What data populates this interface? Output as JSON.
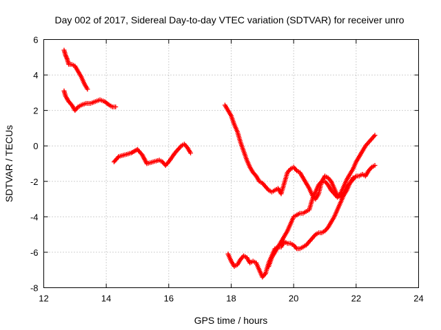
{
  "chart_data": {
    "type": "scatter",
    "title": "Day 002 of 2017, Sidereal Day-to-day VTEC variation (SDTVAR) for receiver unro",
    "xlabel": "GPS time / hours",
    "ylabel": "SDTVAR / TECUs",
    "xlim": [
      12,
      24
    ],
    "ylim": [
      -8,
      6
    ],
    "xticks": [
      "12",
      "14",
      "16",
      "18",
      "20",
      "22",
      "24"
    ],
    "yticks": [
      "-8",
      "-6",
      "-4",
      "-2",
      "0",
      "2",
      "4",
      "6"
    ],
    "grid": true,
    "marker": "plus",
    "color": "#ff0000",
    "series": [
      {
        "x": [
          12.65,
          12.7,
          12.75,
          12.8,
          12.9,
          13.0,
          13.1,
          13.2,
          13.3,
          13.4
        ],
        "y": [
          5.4,
          5.1,
          4.9,
          4.6,
          4.6,
          4.5,
          4.2,
          3.9,
          3.5,
          3.2
        ]
      },
      {
        "x": [
          12.65,
          12.7,
          12.8,
          12.9,
          13.0,
          13.1,
          13.2,
          13.35,
          13.5,
          13.65,
          13.8,
          13.95,
          14.1,
          14.2,
          14.3
        ],
        "y": [
          3.1,
          2.8,
          2.5,
          2.3,
          2.0,
          2.2,
          2.3,
          2.4,
          2.4,
          2.5,
          2.6,
          2.5,
          2.3,
          2.2,
          2.2
        ]
      },
      {
        "x": [
          14.25,
          14.4,
          14.6,
          14.8,
          15.0,
          15.15,
          15.3,
          15.5,
          15.7,
          15.8,
          15.9,
          16.0,
          16.2,
          16.4,
          16.5,
          16.6,
          16.7
        ],
        "y": [
          -0.9,
          -0.6,
          -0.5,
          -0.4,
          -0.2,
          -0.5,
          -1.0,
          -0.9,
          -0.8,
          -0.9,
          -1.1,
          -0.9,
          -0.4,
          0.0,
          0.1,
          -0.1,
          -0.4
        ]
      },
      {
        "x": [
          17.8,
          17.9,
          18.0,
          18.1,
          18.2,
          18.3,
          18.4,
          18.5,
          18.6,
          18.7,
          18.8,
          18.9,
          19.0,
          19.1,
          19.2,
          19.3,
          19.4,
          19.5,
          19.6,
          19.7,
          19.8,
          19.9,
          20.0,
          20.1,
          20.2,
          20.3,
          20.4,
          20.5,
          20.6,
          20.7,
          20.8,
          20.9,
          21.0,
          21.1,
          21.2,
          21.3,
          21.4,
          21.5,
          21.6,
          21.7,
          21.8,
          21.9
        ],
        "y": [
          2.3,
          2.0,
          1.7,
          1.2,
          0.8,
          0.2,
          -0.3,
          -0.8,
          -1.2,
          -1.5,
          -1.7,
          -2.0,
          -2.1,
          -2.3,
          -2.5,
          -2.6,
          -2.5,
          -2.4,
          -2.7,
          -2.1,
          -1.5,
          -1.3,
          -1.2,
          -1.4,
          -1.5,
          -1.8,
          -2.1,
          -2.4,
          -2.8,
          -3.0,
          -2.7,
          -2.0,
          -1.7,
          -1.8,
          -2.0,
          -2.4,
          -2.8,
          -2.9,
          -2.7,
          -2.3,
          -2.1,
          -1.8
        ]
      },
      {
        "x": [
          17.9,
          18.0,
          18.1,
          18.2,
          18.3,
          18.4,
          18.5,
          18.6,
          18.7,
          18.8,
          18.9,
          19.0,
          19.1,
          19.2,
          19.3,
          19.4,
          19.5,
          19.6,
          19.7,
          19.8,
          19.9,
          20.0,
          20.1,
          20.2,
          20.3,
          20.4,
          20.5,
          20.6,
          20.7,
          20.8,
          20.9,
          21.0,
          21.1,
          21.2,
          21.3,
          21.4,
          21.5,
          21.6,
          21.7,
          21.8,
          21.9,
          22.0,
          22.1,
          22.2,
          22.3,
          22.4,
          22.5,
          22.6
        ],
        "y": [
          -6.1,
          -6.5,
          -6.8,
          -6.7,
          -6.4,
          -6.2,
          -6.3,
          -6.6,
          -6.5,
          -6.6,
          -7.0,
          -7.4,
          -7.2,
          -6.6,
          -6.2,
          -5.8,
          -5.7,
          -5.7,
          -5.4,
          -5.5,
          -5.5,
          -5.6,
          -5.8,
          -5.8,
          -5.7,
          -5.6,
          -5.4,
          -5.2,
          -5.0,
          -4.9,
          -4.9,
          -4.8,
          -4.6,
          -4.3,
          -4.0,
          -3.6,
          -3.2,
          -2.8,
          -2.5,
          -2.1,
          -1.9,
          -1.7,
          -1.7,
          -1.6,
          -1.7,
          -1.4,
          -1.2,
          -1.1
        ]
      },
      {
        "x": [
          19.2,
          19.3,
          19.4,
          19.5,
          19.6,
          19.7,
          19.8,
          19.9,
          20.0,
          20.1,
          20.2,
          20.3,
          20.4,
          20.5,
          20.6,
          20.7,
          20.8,
          20.9,
          21.0,
          21.1,
          21.2,
          21.3,
          21.4,
          21.5,
          21.6,
          21.7,
          21.8,
          21.9,
          22.0,
          22.1,
          22.2,
          22.3,
          22.4,
          22.5,
          22.6
        ],
        "y": [
          -6.8,
          -6.3,
          -6.0,
          -5.7,
          -5.4,
          -5.1,
          -4.8,
          -4.4,
          -4.0,
          -3.9,
          -3.8,
          -3.8,
          -3.7,
          -3.6,
          -3.0,
          -2.6,
          -2.2,
          -2.0,
          -2.0,
          -2.2,
          -2.5,
          -2.7,
          -2.9,
          -2.7,
          -2.3,
          -1.9,
          -1.6,
          -1.3,
          -0.9,
          -0.6,
          -0.3,
          0.0,
          0.2,
          0.4,
          0.6
        ]
      }
    ]
  }
}
